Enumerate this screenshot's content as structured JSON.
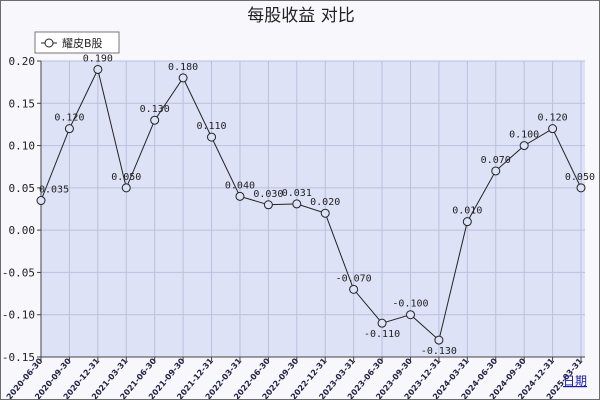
{
  "chart_data": {
    "type": "line",
    "title": "每股收益  对比",
    "corner_link": "日期",
    "x": [
      "2020-06-30",
      "2020-09-30",
      "2020-12-31",
      "2021-03-31",
      "2021-06-30",
      "2021-09-30",
      "2021-12-31",
      "2022-03-31",
      "2022-06-30",
      "2022-09-30",
      "2022-12-31",
      "2023-03-31",
      "2023-06-30",
      "2023-09-30",
      "2023-12-31",
      "2024-03-31",
      "2024-06-30",
      "2024-09-30",
      "2024-12-31",
      "2025-03-31"
    ],
    "series": [
      {
        "name": "耀皮B股",
        "values": [
          0.035,
          0.12,
          0.19,
          0.05,
          0.13,
          0.18,
          0.11,
          0.04,
          0.03,
          0.031,
          0.02,
          -0.07,
          -0.11,
          -0.1,
          -0.13,
          0.01,
          0.07,
          0.1,
          0.12,
          0.05
        ],
        "labels": [
          "0.035",
          "0.120",
          "0.190",
          "0.050",
          "0.130",
          "0.180",
          "0.110",
          "0.040",
          "0.030",
          "0.031",
          "0.020",
          "-0.070",
          "-0.110",
          "-0.100",
          "-0.130",
          "0.010",
          "0.070",
          "0.100",
          "0.120",
          "0.050"
        ]
      }
    ],
    "ylim": [
      -0.15,
      0.2
    ],
    "yticks": [
      "-0.15",
      "-0.10",
      "-0.05",
      "0.00",
      "0.05",
      "0.10",
      "0.15",
      "0.20"
    ],
    "grid": true,
    "legend_position": "top-left",
    "colors": {
      "plot_background": "#dde2f6",
      "grid": "#b9c0de",
      "line": "#222222",
      "marker_fill": "#dde2f6"
    }
  }
}
